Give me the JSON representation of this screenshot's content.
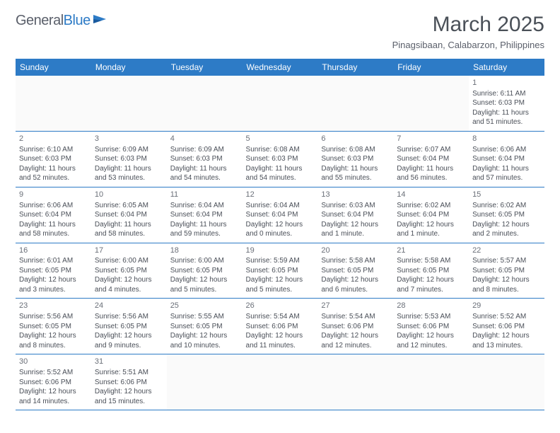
{
  "logo": {
    "text1": "General",
    "text2": "Blue"
  },
  "title": "March 2025",
  "subtitle": "Pinagsibaan, Calabarzon, Philippines",
  "colors": {
    "header_bg": "#2d7bc6",
    "text": "#4a5058",
    "subtext": "#5a5f6a"
  },
  "daynames": [
    "Sunday",
    "Monday",
    "Tuesday",
    "Wednesday",
    "Thursday",
    "Friday",
    "Saturday"
  ],
  "weeks": [
    [
      null,
      null,
      null,
      null,
      null,
      null,
      {
        "n": "1",
        "sr": "Sunrise: 6:11 AM",
        "ss": "Sunset: 6:03 PM",
        "dl": "Daylight: 11 hours and 51 minutes."
      }
    ],
    [
      {
        "n": "2",
        "sr": "Sunrise: 6:10 AM",
        "ss": "Sunset: 6:03 PM",
        "dl": "Daylight: 11 hours and 52 minutes."
      },
      {
        "n": "3",
        "sr": "Sunrise: 6:09 AM",
        "ss": "Sunset: 6:03 PM",
        "dl": "Daylight: 11 hours and 53 minutes."
      },
      {
        "n": "4",
        "sr": "Sunrise: 6:09 AM",
        "ss": "Sunset: 6:03 PM",
        "dl": "Daylight: 11 hours and 54 minutes."
      },
      {
        "n": "5",
        "sr": "Sunrise: 6:08 AM",
        "ss": "Sunset: 6:03 PM",
        "dl": "Daylight: 11 hours and 54 minutes."
      },
      {
        "n": "6",
        "sr": "Sunrise: 6:08 AM",
        "ss": "Sunset: 6:03 PM",
        "dl": "Daylight: 11 hours and 55 minutes."
      },
      {
        "n": "7",
        "sr": "Sunrise: 6:07 AM",
        "ss": "Sunset: 6:04 PM",
        "dl": "Daylight: 11 hours and 56 minutes."
      },
      {
        "n": "8",
        "sr": "Sunrise: 6:06 AM",
        "ss": "Sunset: 6:04 PM",
        "dl": "Daylight: 11 hours and 57 minutes."
      }
    ],
    [
      {
        "n": "9",
        "sr": "Sunrise: 6:06 AM",
        "ss": "Sunset: 6:04 PM",
        "dl": "Daylight: 11 hours and 58 minutes."
      },
      {
        "n": "10",
        "sr": "Sunrise: 6:05 AM",
        "ss": "Sunset: 6:04 PM",
        "dl": "Daylight: 11 hours and 58 minutes."
      },
      {
        "n": "11",
        "sr": "Sunrise: 6:04 AM",
        "ss": "Sunset: 6:04 PM",
        "dl": "Daylight: 11 hours and 59 minutes."
      },
      {
        "n": "12",
        "sr": "Sunrise: 6:04 AM",
        "ss": "Sunset: 6:04 PM",
        "dl": "Daylight: 12 hours and 0 minutes."
      },
      {
        "n": "13",
        "sr": "Sunrise: 6:03 AM",
        "ss": "Sunset: 6:04 PM",
        "dl": "Daylight: 12 hours and 1 minute."
      },
      {
        "n": "14",
        "sr": "Sunrise: 6:02 AM",
        "ss": "Sunset: 6:04 PM",
        "dl": "Daylight: 12 hours and 1 minute."
      },
      {
        "n": "15",
        "sr": "Sunrise: 6:02 AM",
        "ss": "Sunset: 6:05 PM",
        "dl": "Daylight: 12 hours and 2 minutes."
      }
    ],
    [
      {
        "n": "16",
        "sr": "Sunrise: 6:01 AM",
        "ss": "Sunset: 6:05 PM",
        "dl": "Daylight: 12 hours and 3 minutes."
      },
      {
        "n": "17",
        "sr": "Sunrise: 6:00 AM",
        "ss": "Sunset: 6:05 PM",
        "dl": "Daylight: 12 hours and 4 minutes."
      },
      {
        "n": "18",
        "sr": "Sunrise: 6:00 AM",
        "ss": "Sunset: 6:05 PM",
        "dl": "Daylight: 12 hours and 5 minutes."
      },
      {
        "n": "19",
        "sr": "Sunrise: 5:59 AM",
        "ss": "Sunset: 6:05 PM",
        "dl": "Daylight: 12 hours and 5 minutes."
      },
      {
        "n": "20",
        "sr": "Sunrise: 5:58 AM",
        "ss": "Sunset: 6:05 PM",
        "dl": "Daylight: 12 hours and 6 minutes."
      },
      {
        "n": "21",
        "sr": "Sunrise: 5:58 AM",
        "ss": "Sunset: 6:05 PM",
        "dl": "Daylight: 12 hours and 7 minutes."
      },
      {
        "n": "22",
        "sr": "Sunrise: 5:57 AM",
        "ss": "Sunset: 6:05 PM",
        "dl": "Daylight: 12 hours and 8 minutes."
      }
    ],
    [
      {
        "n": "23",
        "sr": "Sunrise: 5:56 AM",
        "ss": "Sunset: 6:05 PM",
        "dl": "Daylight: 12 hours and 8 minutes."
      },
      {
        "n": "24",
        "sr": "Sunrise: 5:56 AM",
        "ss": "Sunset: 6:05 PM",
        "dl": "Daylight: 12 hours and 9 minutes."
      },
      {
        "n": "25",
        "sr": "Sunrise: 5:55 AM",
        "ss": "Sunset: 6:05 PM",
        "dl": "Daylight: 12 hours and 10 minutes."
      },
      {
        "n": "26",
        "sr": "Sunrise: 5:54 AM",
        "ss": "Sunset: 6:06 PM",
        "dl": "Daylight: 12 hours and 11 minutes."
      },
      {
        "n": "27",
        "sr": "Sunrise: 5:54 AM",
        "ss": "Sunset: 6:06 PM",
        "dl": "Daylight: 12 hours and 12 minutes."
      },
      {
        "n": "28",
        "sr": "Sunrise: 5:53 AM",
        "ss": "Sunset: 6:06 PM",
        "dl": "Daylight: 12 hours and 12 minutes."
      },
      {
        "n": "29",
        "sr": "Sunrise: 5:52 AM",
        "ss": "Sunset: 6:06 PM",
        "dl": "Daylight: 12 hours and 13 minutes."
      }
    ],
    [
      {
        "n": "30",
        "sr": "Sunrise: 5:52 AM",
        "ss": "Sunset: 6:06 PM",
        "dl": "Daylight: 12 hours and 14 minutes."
      },
      {
        "n": "31",
        "sr": "Sunrise: 5:51 AM",
        "ss": "Sunset: 6:06 PM",
        "dl": "Daylight: 12 hours and 15 minutes."
      },
      null,
      null,
      null,
      null,
      null
    ]
  ]
}
